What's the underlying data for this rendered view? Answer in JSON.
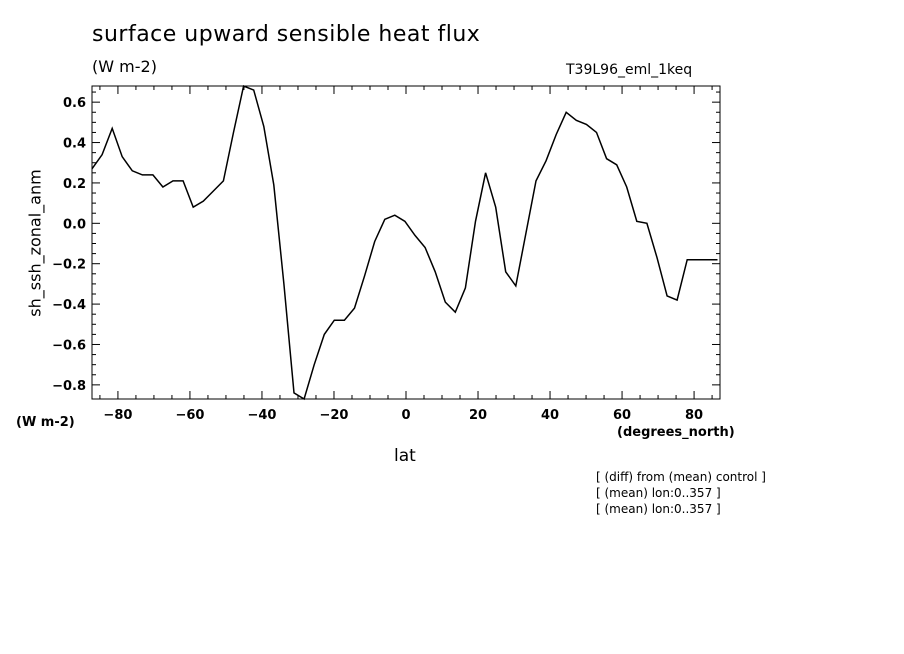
{
  "header": {
    "title": "surface upward sensible heat flux",
    "units": "(W m-2)",
    "run_name": "T39L96_eml_1keq"
  },
  "axes": {
    "y_units": "(W m-2)",
    "x_units": "(degrees_north)",
    "x_title": "lat",
    "y_title": "sh_ssh_zonal_anm"
  },
  "notes": [
    "[ (diff) from (mean) control ]",
    "[ (mean) lon:0..357 ]",
    "[ (mean) lon:0..357 ]"
  ],
  "chart_data": {
    "type": "line",
    "title": "surface upward sensible heat flux",
    "xlabel": "lat",
    "ylabel": "sh_ssh_zonal_anm",
    "xlim": [
      -87.2,
      87.2
    ],
    "ylim": [
      -0.87,
      0.68
    ],
    "xticks": [
      -80,
      -60,
      -40,
      -20,
      0,
      20,
      40,
      60,
      80
    ],
    "xtick_labels": [
      "−80",
      "−60",
      "−40",
      "−20",
      "0",
      "20",
      "40",
      "60",
      "80"
    ],
    "yticks": [
      -0.8,
      -0.6,
      -0.4,
      -0.2,
      0.0,
      0.2,
      0.4,
      0.6
    ],
    "ytick_labels": [
      "−0.8",
      "−0.6",
      "−0.4",
      "−0.2",
      "0.0",
      "0.2",
      "0.4",
      "0.6"
    ],
    "grid": false,
    "series": [
      {
        "x": [
          -87.2,
          -84.4,
          -81.6,
          -78.8,
          -76.0,
          -73.2,
          -70.3,
          -67.5,
          -64.7,
          -61.9,
          -59.1,
          -56.3,
          -53.5,
          -50.7,
          -47.9,
          -45.1,
          -42.3,
          -39.5,
          -36.7,
          -33.9,
          -31.1,
          -28.3,
          -25.5,
          -22.7,
          -19.9,
          -17.1,
          -14.3,
          -11.5,
          -8.7,
          -5.9,
          -3.1,
          -0.3,
          2.5,
          5.3,
          8.1,
          10.9,
          13.7,
          16.5,
          19.3,
          22.1,
          24.9,
          27.7,
          30.5,
          33.3,
          36.1,
          38.9,
          41.7,
          44.5,
          47.3,
          50.1,
          52.9,
          55.7,
          58.5,
          61.3,
          64.1,
          66.9,
          69.7,
          72.5,
          75.3,
          78.1,
          80.9,
          83.7,
          86.5
        ],
        "values": [
          0.27,
          0.34,
          0.47,
          0.33,
          0.26,
          0.24,
          0.24,
          0.18,
          0.21,
          0.21,
          0.08,
          0.11,
          0.16,
          0.21,
          0.45,
          0.68,
          0.66,
          0.48,
          0.19,
          -0.3,
          -0.84,
          -0.87,
          -0.7,
          -0.55,
          -0.48,
          -0.48,
          -0.42,
          -0.26,
          -0.09,
          0.02,
          0.04,
          0.01,
          -0.06,
          -0.12,
          -0.24,
          -0.39,
          -0.44,
          -0.32,
          0.01,
          0.25,
          0.08,
          -0.24,
          -0.31,
          -0.05,
          0.21,
          0.31,
          0.44,
          0.55,
          0.51,
          0.49,
          0.45,
          0.32,
          0.29,
          0.18,
          0.01,
          0.0,
          -0.17,
          -0.36,
          -0.38,
          -0.18,
          -0.18,
          -0.18,
          -0.18
        ]
      }
    ]
  }
}
